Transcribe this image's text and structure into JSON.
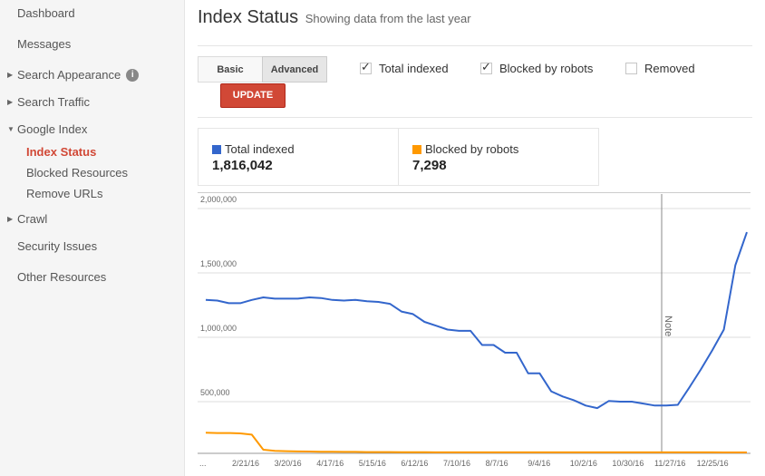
{
  "sidebar": {
    "dashboard": "Dashboard",
    "messages": "Messages",
    "search_appearance": "Search Appearance",
    "search_traffic": "Search Traffic",
    "google_index": "Google Index",
    "index_status": "Index Status",
    "blocked_resources": "Blocked Resources",
    "remove_urls": "Remove URLs",
    "crawl": "Crawl",
    "security_issues": "Security Issues",
    "other_resources": "Other Resources"
  },
  "header": {
    "title": "Index Status",
    "subtitle": "Showing data from the last year"
  },
  "controls": {
    "basic_label": "Basic",
    "advanced_label": "Advanced",
    "update_label": "UPDATE",
    "checkboxes": [
      {
        "label": "Total indexed",
        "checked": true
      },
      {
        "label": "Blocked by robots",
        "checked": true
      },
      {
        "label": "Removed",
        "checked": false
      }
    ]
  },
  "totals": {
    "total_indexed_label": "Total indexed",
    "total_indexed_value": "1,816,042",
    "blocked_label": "Blocked by robots",
    "blocked_value": "7,298"
  },
  "colors": {
    "total_indexed": "#3366cc",
    "blocked_by_robots": "#ff9900",
    "accent": "#d14836"
  },
  "chart_data": {
    "type": "line",
    "y_ticks": [
      "2,000,000",
      "1,500,000",
      "1,000,000",
      "500,000"
    ],
    "ylim": [
      0,
      2000000
    ],
    "x_tick_labels": [
      "...",
      "2/21/16",
      "3/20/16",
      "4/17/16",
      "5/15/16",
      "6/12/16",
      "7/10/16",
      "8/7/16",
      "9/4/16",
      "10/2/16",
      "10/30/16",
      "11/27/16",
      "12/25/16"
    ],
    "annotation": {
      "label": "Note",
      "at_week": 52
    },
    "series": [
      {
        "name": "Total indexed",
        "color": "#3366cc",
        "values": [
          1290000,
          1285000,
          1265000,
          1265000,
          1290000,
          1310000,
          1300000,
          1300000,
          1300000,
          1310000,
          1305000,
          1290000,
          1285000,
          1290000,
          1280000,
          1275000,
          1260000,
          1200000,
          1180000,
          1120000,
          1090000,
          1060000,
          1050000,
          1050000,
          940000,
          940000,
          880000,
          880000,
          720000,
          720000,
          580000,
          540000,
          510000,
          470000,
          450000,
          505000,
          500000,
          500000,
          485000,
          470000,
          470000,
          475000,
          610000,
          750000,
          900000,
          1060000,
          1560000,
          1816042
        ]
      },
      {
        "name": "Blocked by robots",
        "color": "#ff9900",
        "values": [
          160000,
          158000,
          158000,
          155000,
          145000,
          28000,
          20000,
          17000,
          15000,
          14000,
          13000,
          12000,
          11000,
          11000,
          10000,
          10000,
          10000,
          9000,
          9000,
          9000,
          8000,
          8000,
          8000,
          8000,
          8000,
          8000,
          8000,
          8000,
          8000,
          7500,
          7500,
          7500,
          7500,
          7500,
          7500,
          7500,
          7500,
          7500,
          7500,
          7500,
          7500,
          7500,
          7400,
          7400,
          7400,
          7300,
          7300,
          7298
        ]
      }
    ]
  }
}
